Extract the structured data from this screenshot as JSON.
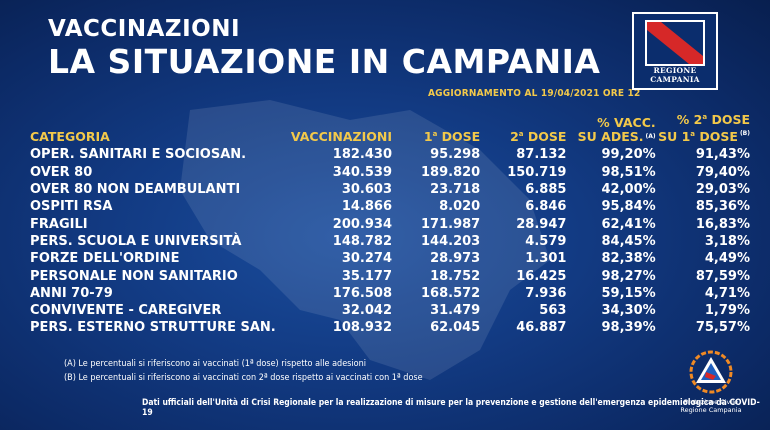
{
  "header": {
    "kicker": "VACCINAZIONI",
    "title": "LA SITUAZIONE IN CAMPANIA",
    "update": "AGGIORNAMENTO AL 19/04/2021 ORE 12"
  },
  "logo": {
    "text": "REGIONE CAMPANIA"
  },
  "table": {
    "headers": {
      "categoria": "CATEGORIA",
      "vaccinazioni": "VACCINAZIONI",
      "dose1_num": "1",
      "dose1_sup": "a",
      "dose1_text": " DOSE",
      "dose2_num": "2",
      "dose2_sup": "a",
      "dose2_text": " DOSE",
      "vacc_line1": "% VACC.",
      "vacc_line2": "SU ADES.",
      "vacc_note": "(A)",
      "seconda_line1": "% 2",
      "seconda_sup1": "a",
      "seconda_line1b": " DOSE",
      "seconda_line2": "SU 1",
      "seconda_sup2": "a",
      "seconda_line2b": " DOSE",
      "seconda_note": "(B)"
    },
    "rows": [
      [
        "OPER. SANITARI E SOCIOSAN.",
        "182.430",
        "95.298",
        "87.132",
        "99,20%",
        "91,43%"
      ],
      [
        "OVER 80",
        "340.539",
        "189.820",
        "150.719",
        "98,51%",
        "79,40%"
      ],
      [
        "OVER 80 NON DEAMBULANTI",
        "30.603",
        "23.718",
        "6.885",
        "42,00%",
        "29,03%"
      ],
      [
        "OSPITI RSA",
        "14.866",
        "8.020",
        "6.846",
        "95,84%",
        "85,36%"
      ],
      [
        "FRAGILI",
        "200.934",
        "171.987",
        "28.947",
        "62,41%",
        "16,83%"
      ],
      [
        "PERS. SCUOLA E UNIVERSITÀ",
        "148.782",
        "144.203",
        "4.579",
        "84,45%",
        "3,18%"
      ],
      [
        "FORZE DELL'ORDINE",
        "30.274",
        "28.973",
        "1.301",
        "82,38%",
        "4,49%"
      ],
      [
        "PERSONALE NON SANITARIO",
        "35.177",
        "18.752",
        "16.425",
        "98,27%",
        "87,59%"
      ],
      [
        "ANNI 70-79",
        "176.508",
        "168.572",
        "7.936",
        "59,15%",
        "4,71%"
      ],
      [
        "CONVIVENTE - CAREGIVER",
        "32.042",
        "31.479",
        "563",
        "34,30%",
        "1,79%"
      ],
      [
        "PERS. ESTERNO STRUTTURE SAN.",
        "108.932",
        "62.045",
        "46.887",
        "98,39%",
        "75,57%"
      ]
    ]
  },
  "notes": {
    "a": "(A) Le percentuali si riferiscono ai vaccinati (1ª dose) rispetto alle adesioni",
    "b": "(B) Le percentuali si riferiscono ai vaccinati con 2ª dose rispetto ai vaccinati con 1ª dose"
  },
  "source": "Dati ufficiali dell'Unità di Crisi Regionale per la realizzazione di misure per la prevenzione e gestione dell'emergenza epidemiologica da COVID-19",
  "pc_logo": {
    "line1": "Protezione Civile",
    "line2": "Regione Campania"
  },
  "colors": {
    "background": "#123a82",
    "accent": "#f3c94a",
    "text": "#ffffff"
  }
}
